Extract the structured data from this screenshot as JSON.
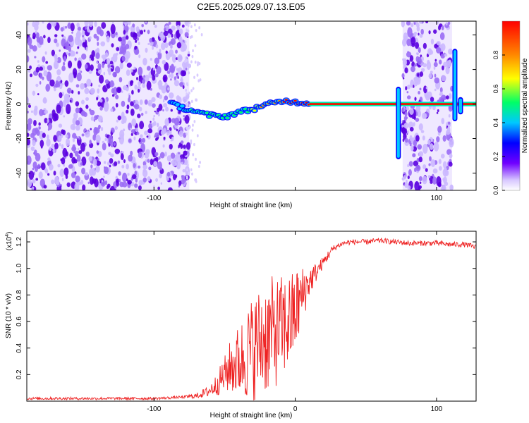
{
  "figure": {
    "title": "C2E5.2025.029.07.13.E05"
  },
  "colors": {
    "spectrogram": [
      "#b8a8ff",
      "#5a00e0",
      "#0000ff",
      "#00c8ff",
      "#00ff66",
      "#ffff00",
      "#ff8800",
      "#ff0000"
    ],
    "snr_line": "#ee2222",
    "background": "#ffffff"
  },
  "chart_data": [
    {
      "type": "heatmap",
      "xlabel": "Height of straight line (km)",
      "ylabel": "Frequency (Hz)",
      "xlim": [
        -190,
        128
      ],
      "ylim": [
        -50,
        48
      ],
      "x_ticks": [
        -100,
        0,
        100
      ],
      "x_tick_labels": [
        "-100",
        "",
        "100"
      ],
      "y_ticks": [
        -40,
        -20,
        0,
        20,
        40
      ],
      "y_tick_labels": [
        "-40",
        "-20",
        "0",
        "20",
        "40"
      ],
      "grid": false,
      "colorbar": {
        "label": "Normalized spectral amplitude",
        "range": [
          0,
          1
        ],
        "ticks": [
          0.0,
          0.2,
          0.4,
          0.6,
          0.8
        ],
        "tick_labels": [
          "0.0",
          "0.2",
          "0.4",
          "0.6",
          "0.8"
        ],
        "position": "right"
      },
      "noise_regions": [
        {
          "x_range": [
            -190,
            -75
          ],
          "y_range": [
            -50,
            48
          ]
        },
        {
          "x_range": [
            76,
            111
          ],
          "y_range": [
            -50,
            48
          ]
        }
      ],
      "ridge": {
        "x": [
          -88,
          -80,
          -72,
          -64,
          -56,
          -48,
          -42,
          -36,
          -30,
          -24,
          -18,
          -12,
          -6,
          0,
          6,
          12,
          20,
          40,
          60,
          72
        ],
        "freq": [
          0,
          -2,
          -4,
          -6,
          -7,
          -7,
          -5,
          -4,
          -3,
          -1,
          0,
          1,
          2,
          1,
          1,
          0,
          0,
          0,
          0,
          0
        ],
        "amplitude": [
          0.35,
          0.5,
          0.55,
          0.5,
          0.55,
          0.6,
          0.6,
          0.6,
          0.7,
          0.8,
          0.85,
          0.9,
          0.95,
          0.95,
          1.0,
          1.0,
          1.0,
          1.0,
          1.0,
          1.0
        ],
        "continues_to": 128
      },
      "vertical_streaks": [
        {
          "x": 73,
          "freq_range": [
            -32,
            10
          ]
        },
        {
          "x": 113,
          "freq_range": [
            -10,
            32
          ]
        },
        {
          "x": 117,
          "freq_range": [
            -6,
            4
          ]
        }
      ]
    },
    {
      "type": "line",
      "xlabel": "Height of straight line (km)",
      "ylabel": "SNR (10 * v/v)",
      "y_scale_label": "(x10",
      "y_scale_exponent": "4",
      "xlim": [
        -190,
        128
      ],
      "ylim": [
        0,
        1.28
      ],
      "x_ticks": [
        -100,
        0,
        100
      ],
      "x_tick_labels": [
        "-100",
        "0",
        "100"
      ],
      "y_ticks": [
        0.2,
        0.4,
        0.6,
        0.8,
        1.0,
        1.2
      ],
      "y_tick_labels": [
        "0.2",
        "0.4",
        "0.6",
        "0.8",
        "1.0",
        "1.2"
      ],
      "grid": false,
      "series": [
        {
          "x": [
            -190,
            -160,
            -130,
            -100,
            -80,
            -70,
            -62,
            -56,
            -50,
            -46,
            -42,
            -38,
            -34,
            -30,
            -26,
            -22,
            -18,
            -14,
            -10,
            -6,
            -2,
            2,
            6,
            10,
            14,
            18,
            22,
            26,
            30,
            34,
            40,
            50,
            60,
            70,
            80,
            90,
            100,
            110,
            120,
            128
          ],
          "y": [
            0.02,
            0.02,
            0.02,
            0.02,
            0.03,
            0.04,
            0.07,
            0.12,
            0.2,
            0.26,
            0.28,
            0.32,
            0.36,
            0.4,
            0.44,
            0.48,
            0.5,
            0.52,
            0.55,
            0.58,
            0.62,
            0.72,
            0.82,
            0.9,
            0.96,
            1.02,
            1.08,
            1.14,
            1.17,
            1.19,
            1.2,
            1.2,
            1.21,
            1.2,
            1.19,
            1.19,
            1.19,
            1.18,
            1.18,
            1.16
          ],
          "noise_band": [
            0.01,
            0.01,
            0.01,
            0.01,
            0.01,
            0.02,
            0.04,
            0.08,
            0.14,
            0.2,
            0.26,
            0.3,
            0.36,
            0.4,
            0.42,
            0.44,
            0.44,
            0.42,
            0.4,
            0.38,
            0.36,
            0.3,
            0.2,
            0.12,
            0.08,
            0.05,
            0.04,
            0.03,
            0.02,
            0.02,
            0.02,
            0.02,
            0.02,
            0.02,
            0.02,
            0.02,
            0.02,
            0.02,
            0.02,
            0.02
          ]
        }
      ]
    }
  ]
}
